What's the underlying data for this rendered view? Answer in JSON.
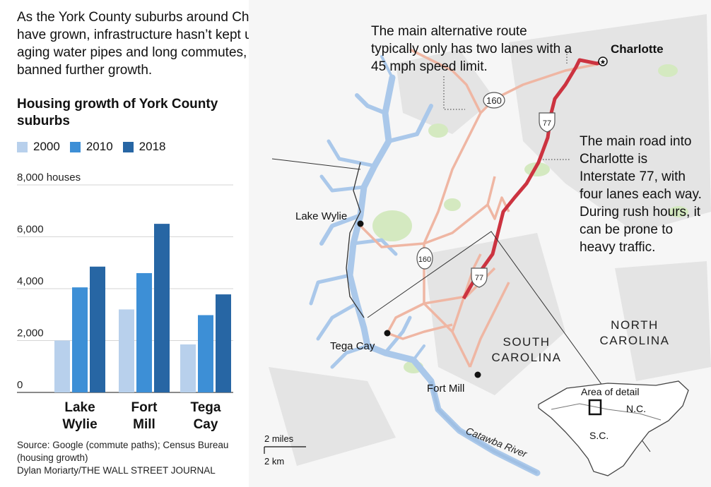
{
  "intro": "As the York County suburbs around Charlotte, N.C., have grown, infrastructure hasn’t kept up. Facing aging water pipes and long commutes, the county banned further growth.",
  "chart_data": {
    "type": "bar",
    "title": "Housing growth of York County suburbs",
    "categories": [
      "Lake Wylie",
      "Fort Mill",
      "Tega Cay"
    ],
    "category_lines": [
      [
        "Lake",
        "Wylie"
      ],
      [
        "Fort",
        "Mill"
      ],
      [
        "Tega",
        "Cay"
      ]
    ],
    "series": [
      {
        "name": "2000",
        "color": "#b8d0ec",
        "values": [
          2000,
          3200,
          1850
        ]
      },
      {
        "name": "2010",
        "color": "#3d8fd6",
        "values": [
          4050,
          4600,
          2980
        ]
      },
      {
        "name": "2018",
        "color": "#2766a4",
        "values": [
          4850,
          6500,
          3780
        ]
      }
    ],
    "ylim": [
      0,
      8000
    ],
    "yticks": [
      0,
      2000,
      4000,
      6000,
      8000
    ],
    "ytick_labels": [
      "0",
      "2,000",
      "4,000",
      "6,000",
      "8,000 houses"
    ],
    "grid": true,
    "legend_position": "top-left"
  },
  "source": {
    "line1": "Source:  Google (commute paths); Census Bureau",
    "line2": "(housing growth)",
    "credit": "Dylan Moriarty/THE WALL STREET JOURNAL"
  },
  "map": {
    "note_alternative": "The main alternative route typically only has two lanes with a 45 mph speed limit.",
    "note_main": "The main road into Charlotte is Interstate 77, with four lanes each way. During rush hours, it can be prone to heavy traffic.",
    "cities": {
      "charlotte": "Charlotte",
      "lake_wylie": "Lake Wylie",
      "tega_cay": "Tega Cay",
      "fort_mill": "Fort Mill"
    },
    "states": {
      "nc_line1": "NORTH",
      "nc_line2": "CAROLINA",
      "sc_line1": "SOUTH",
      "sc_line2": "CAROLINA"
    },
    "river": "Catawba River",
    "highway_shields": [
      "160",
      "77",
      "160",
      "77"
    ],
    "scale": {
      "miles": "2 miles",
      "km": "2 km"
    },
    "inset": {
      "title": "Area of detail",
      "nc": "N.C.",
      "sc": "S.C."
    },
    "colors": {
      "i77": "#cc3340",
      "route_alt": "#efb6a3",
      "water": "#aac8ea",
      "urban": "#e6e6e6",
      "park": "#d4e9c0"
    }
  }
}
